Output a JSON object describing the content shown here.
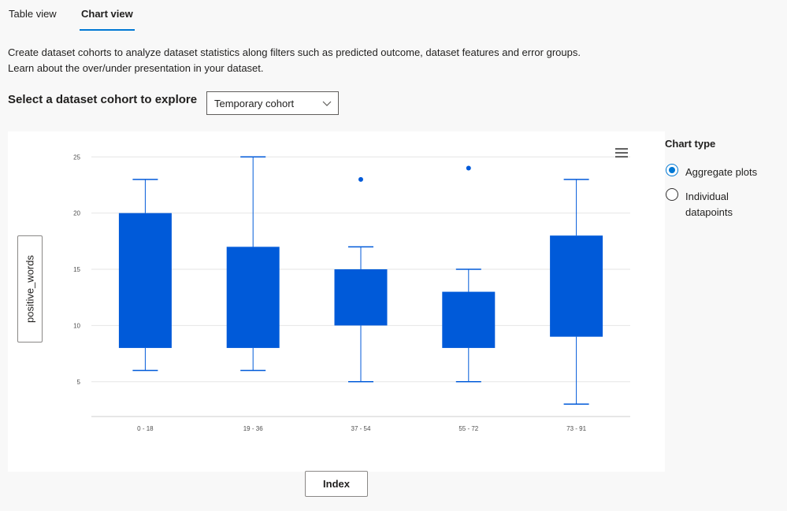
{
  "tabs": [
    {
      "label": "Table view",
      "selected": false
    },
    {
      "label": "Chart view",
      "selected": true
    }
  ],
  "description": "Create dataset cohorts to analyze dataset statistics along filters such as predicted outcome, dataset features and error groups. Learn about the over/under presentation in your dataset.",
  "cohort_select": {
    "label": "Select a dataset cohort to explore",
    "value": "Temporary cohort"
  },
  "chart_menu_icon": "hamburger-menu-icon",
  "y_axis_button": "positive_words",
  "x_axis_button": "Index",
  "chart_type_panel": {
    "title": "Chart type",
    "options": [
      {
        "label": "Aggregate plots",
        "checked": true
      },
      {
        "label": "Individual datapoints",
        "checked": false
      }
    ]
  },
  "colors": {
    "accent": "#0078d4",
    "box_fill": "#005ad9",
    "gridline": "#e6e6e6"
  },
  "chart_data": {
    "type": "box",
    "categories": [
      "0 - 18",
      "19 - 36",
      "37 - 54",
      "55 - 72",
      "73 - 91"
    ],
    "boxes": [
      {
        "min": 6,
        "q1": 8,
        "q3": 20,
        "max": 23,
        "outliers": []
      },
      {
        "min": 6,
        "q1": 8,
        "q3": 17,
        "max": 25,
        "outliers": []
      },
      {
        "min": 5,
        "q1": 10,
        "q3": 15,
        "max": 17,
        "outliers": [
          23
        ]
      },
      {
        "min": 5,
        "q1": 8,
        "q3": 13,
        "max": 15,
        "outliers": [
          24
        ]
      },
      {
        "min": 3,
        "q1": 9,
        "q3": 18,
        "max": 23,
        "outliers": []
      }
    ],
    "yticks": [
      5,
      10,
      15,
      20,
      25
    ],
    "ylim": [
      1.9,
      26
    ],
    "ylabel": "positive_words",
    "xlabel": "Index",
    "grid": true
  }
}
